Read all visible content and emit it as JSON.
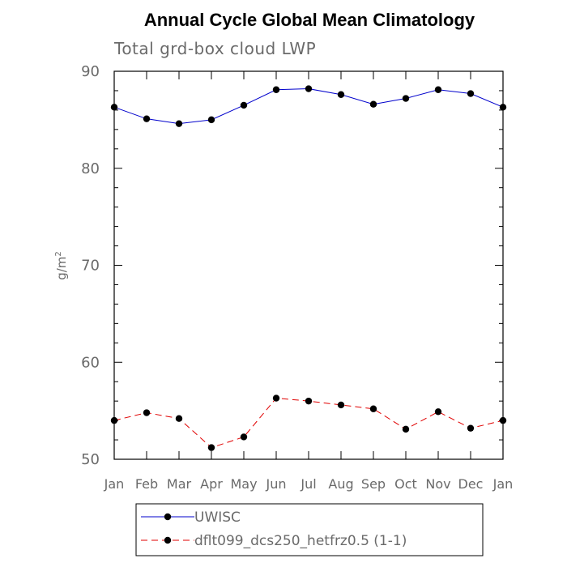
{
  "chart_data": {
    "type": "line",
    "title": "Annual Cycle Global Mean Climatology",
    "subtitle": "Total grd-box cloud LWP",
    "xlabel": "",
    "ylabel": "g/m",
    "ylabel_superscript": "2",
    "categories": [
      "Jan",
      "Feb",
      "Mar",
      "Apr",
      "May",
      "Jun",
      "Jul",
      "Aug",
      "Sep",
      "Oct",
      "Nov",
      "Dec",
      "Jan"
    ],
    "ylim": [
      50,
      90
    ],
    "yticks": [
      50,
      60,
      70,
      80,
      90
    ],
    "grid": false,
    "legend_position": "bottom",
    "series": [
      {
        "name": "UWISC",
        "color": "#0000cc",
        "line_style": "solid",
        "values": [
          86.3,
          85.1,
          84.6,
          85.0,
          86.5,
          88.1,
          88.2,
          87.6,
          86.6,
          87.2,
          88.1,
          87.7,
          86.3
        ]
      },
      {
        "name": "dflt099_dcs250_hetfrz0.5 (1-1)",
        "color": "#e00000",
        "line_style": "dashed",
        "values": [
          54.0,
          54.8,
          54.2,
          51.2,
          52.3,
          56.3,
          56.0,
          55.6,
          55.2,
          53.1,
          54.9,
          53.2,
          54.0
        ]
      }
    ]
  }
}
